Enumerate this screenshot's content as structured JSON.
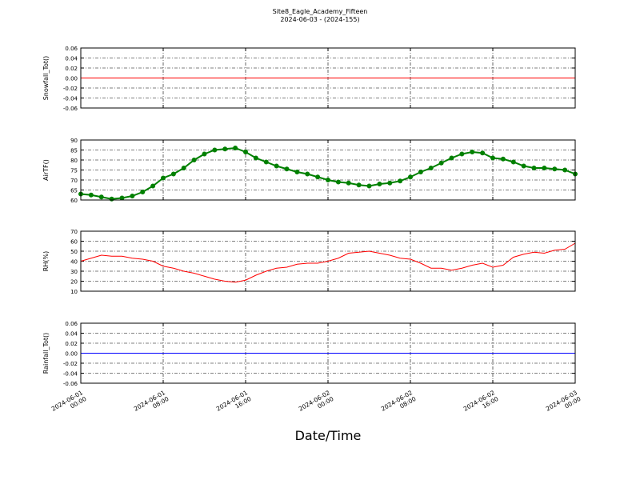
{
  "chart_data": [
    {
      "type": "line",
      "title": "Site8_Eagle_Academy_Fifteen",
      "subtitle": "2024-06-03 - (2024-155)",
      "ylabel": "Snowfall_Tot()",
      "color": "#ff0000",
      "grid": true,
      "x": [
        "2024-06-01 00:00",
        "2024-06-03 00:00"
      ],
      "values": [
        0,
        0
      ],
      "xlim": [
        "2024-06-01 00:00",
        "2024-06-03 00:00"
      ],
      "ylim": [
        -0.06,
        0.06
      ],
      "yticks": [
        -0.06,
        -0.04,
        -0.02,
        {
          "value": 0,
          "label": "0.00"
        },
        0.02,
        0.04,
        0.06
      ]
    },
    {
      "type": "line",
      "ylabel": "AirTF()",
      "color": "#008000",
      "markers": true,
      "grid": true,
      "x": [
        "2024-06-01 00:00",
        "2024-06-01 01:00",
        "2024-06-01 02:00",
        "2024-06-01 03:00",
        "2024-06-01 04:00",
        "2024-06-01 05:00",
        "2024-06-01 06:00",
        "2024-06-01 07:00",
        "2024-06-01 08:00",
        "2024-06-01 09:00",
        "2024-06-01 10:00",
        "2024-06-01 11:00",
        "2024-06-01 12:00",
        "2024-06-01 13:00",
        "2024-06-01 14:00",
        "2024-06-01 15:00",
        "2024-06-01 16:00",
        "2024-06-01 17:00",
        "2024-06-01 18:00",
        "2024-06-01 19:00",
        "2024-06-01 20:00",
        "2024-06-01 21:00",
        "2024-06-01 22:00",
        "2024-06-01 23:00",
        "2024-06-02 00:00",
        "2024-06-02 01:00",
        "2024-06-02 02:00",
        "2024-06-02 03:00",
        "2024-06-02 04:00",
        "2024-06-02 05:00",
        "2024-06-02 06:00",
        "2024-06-02 07:00",
        "2024-06-02 08:00",
        "2024-06-02 09:00",
        "2024-06-02 10:00",
        "2024-06-02 11:00",
        "2024-06-02 12:00",
        "2024-06-02 13:00",
        "2024-06-02 14:00",
        "2024-06-02 15:00",
        "2024-06-02 16:00",
        "2024-06-02 17:00",
        "2024-06-02 18:00",
        "2024-06-02 19:00",
        "2024-06-02 20:00",
        "2024-06-02 21:00",
        "2024-06-02 22:00",
        "2024-06-02 23:00",
        "2024-06-03 00:00"
      ],
      "values": [
        63,
        62.5,
        61.5,
        60.5,
        61,
        62,
        64,
        67,
        71,
        73,
        76,
        80,
        83,
        85,
        85.5,
        86,
        84,
        81,
        79,
        77,
        75.5,
        74,
        73,
        71.5,
        70,
        69,
        68.5,
        67.5,
        67,
        68,
        68.5,
        69.5,
        71.5,
        74,
        76,
        78.5,
        81,
        83,
        84,
        83.5,
        81,
        80.5,
        79,
        77,
        76,
        76,
        75.5,
        75,
        73
      ],
      "xlim": [
        "2024-06-01 00:00",
        "2024-06-03 00:00"
      ],
      "ylim": [
        60,
        90
      ],
      "yticks": [
        60,
        65,
        70,
        75,
        80,
        85,
        90
      ]
    },
    {
      "type": "line",
      "ylabel": "RH(%)",
      "color": "#ff0000",
      "grid": true,
      "x": [
        "2024-06-01 00:00",
        "2024-06-01 01:00",
        "2024-06-01 02:00",
        "2024-06-01 03:00",
        "2024-06-01 04:00",
        "2024-06-01 05:00",
        "2024-06-01 06:00",
        "2024-06-01 07:00",
        "2024-06-01 08:00",
        "2024-06-01 09:00",
        "2024-06-01 10:00",
        "2024-06-01 11:00",
        "2024-06-01 12:00",
        "2024-06-01 13:00",
        "2024-06-01 14:00",
        "2024-06-01 15:00",
        "2024-06-01 16:00",
        "2024-06-01 17:00",
        "2024-06-01 18:00",
        "2024-06-01 19:00",
        "2024-06-01 20:00",
        "2024-06-01 21:00",
        "2024-06-01 22:00",
        "2024-06-01 23:00",
        "2024-06-02 00:00",
        "2024-06-02 01:00",
        "2024-06-02 02:00",
        "2024-06-02 03:00",
        "2024-06-02 04:00",
        "2024-06-02 05:00",
        "2024-06-02 06:00",
        "2024-06-02 07:00",
        "2024-06-02 08:00",
        "2024-06-02 09:00",
        "2024-06-02 10:00",
        "2024-06-02 11:00",
        "2024-06-02 12:00",
        "2024-06-02 13:00",
        "2024-06-02 14:00",
        "2024-06-02 15:00",
        "2024-06-02 16:00",
        "2024-06-02 17:00",
        "2024-06-02 18:00",
        "2024-06-02 19:00",
        "2024-06-02 20:00",
        "2024-06-02 21:00",
        "2024-06-02 22:00",
        "2024-06-02 23:00",
        "2024-06-03 00:00"
      ],
      "values": [
        40,
        43,
        46,
        45,
        45,
        43,
        42,
        40,
        35,
        33,
        30,
        28,
        25,
        22,
        20,
        19,
        21,
        26,
        30,
        33,
        34,
        37,
        38,
        38,
        40,
        43,
        48,
        49,
        50,
        48,
        46,
        43,
        42,
        38,
        33,
        33,
        31,
        33,
        36,
        38,
        34,
        36,
        44,
        47,
        49,
        48,
        51,
        52,
        58
      ],
      "xlim": [
        "2024-06-01 00:00",
        "2024-06-03 00:00"
      ],
      "ylim": [
        10,
        70
      ],
      "yticks": [
        10,
        20,
        30,
        40,
        50,
        60,
        70
      ]
    },
    {
      "type": "line",
      "ylabel": "Rainfall_Tot()",
      "xlabel": "Date/Time",
      "color": "#0000ff",
      "grid": true,
      "x": [
        "2024-06-01 00:00",
        "2024-06-03 00:00"
      ],
      "values": [
        0,
        0
      ],
      "xlim": [
        "2024-06-01 00:00",
        "2024-06-03 00:00"
      ],
      "ylim": [
        -0.06,
        0.06
      ],
      "yticks": [
        -0.06,
        -0.04,
        -0.02,
        {
          "value": 0,
          "label": "0.00"
        },
        0.02,
        0.04,
        0.06
      ],
      "xticks": [
        {
          "value": "2024-06-01 00:00",
          "label": [
            "2024-06-01",
            "00:00"
          ]
        },
        {
          "value": "2024-06-01 08:00",
          "label": [
            "2024-06-01",
            "08:00"
          ]
        },
        {
          "value": "2024-06-01 16:00",
          "label": [
            "2024-06-01",
            "16:00"
          ]
        },
        {
          "value": "2024-06-02 00:00",
          "label": [
            "2024-06-02",
            "00:00"
          ]
        },
        {
          "value": "2024-06-02 08:00",
          "label": [
            "2024-06-02",
            "08:00"
          ]
        },
        {
          "value": "2024-06-02 16:00",
          "label": [
            "2024-06-02",
            "16:00"
          ]
        },
        {
          "value": "2024-06-03 00:00",
          "label": [
            "2024-06-03",
            "00:00"
          ]
        }
      ]
    }
  ]
}
